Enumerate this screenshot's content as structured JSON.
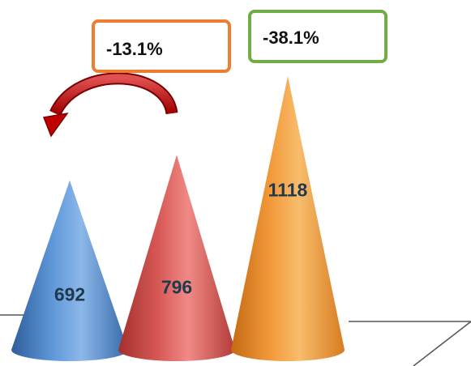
{
  "chart_data": {
    "type": "bar",
    "shape": "cone",
    "title": "",
    "xlabel": "",
    "ylabel": "",
    "categories": [
      "",
      "",
      ""
    ],
    "values": [
      692,
      796,
      1118
    ],
    "value_labels": [
      "692",
      "796",
      "1118"
    ],
    "colors": [
      "#4F86C6",
      "#D9534F",
      "#F39C3C"
    ],
    "grid": false,
    "legend": "none",
    "annotations": [
      {
        "text": "-13.1%",
        "border_color": "#ED7D31"
      },
      {
        "text": "-38.1%",
        "border_color": "#70AD47"
      }
    ],
    "arrow": {
      "direction": "right-to-left",
      "color": "#C00000"
    }
  }
}
